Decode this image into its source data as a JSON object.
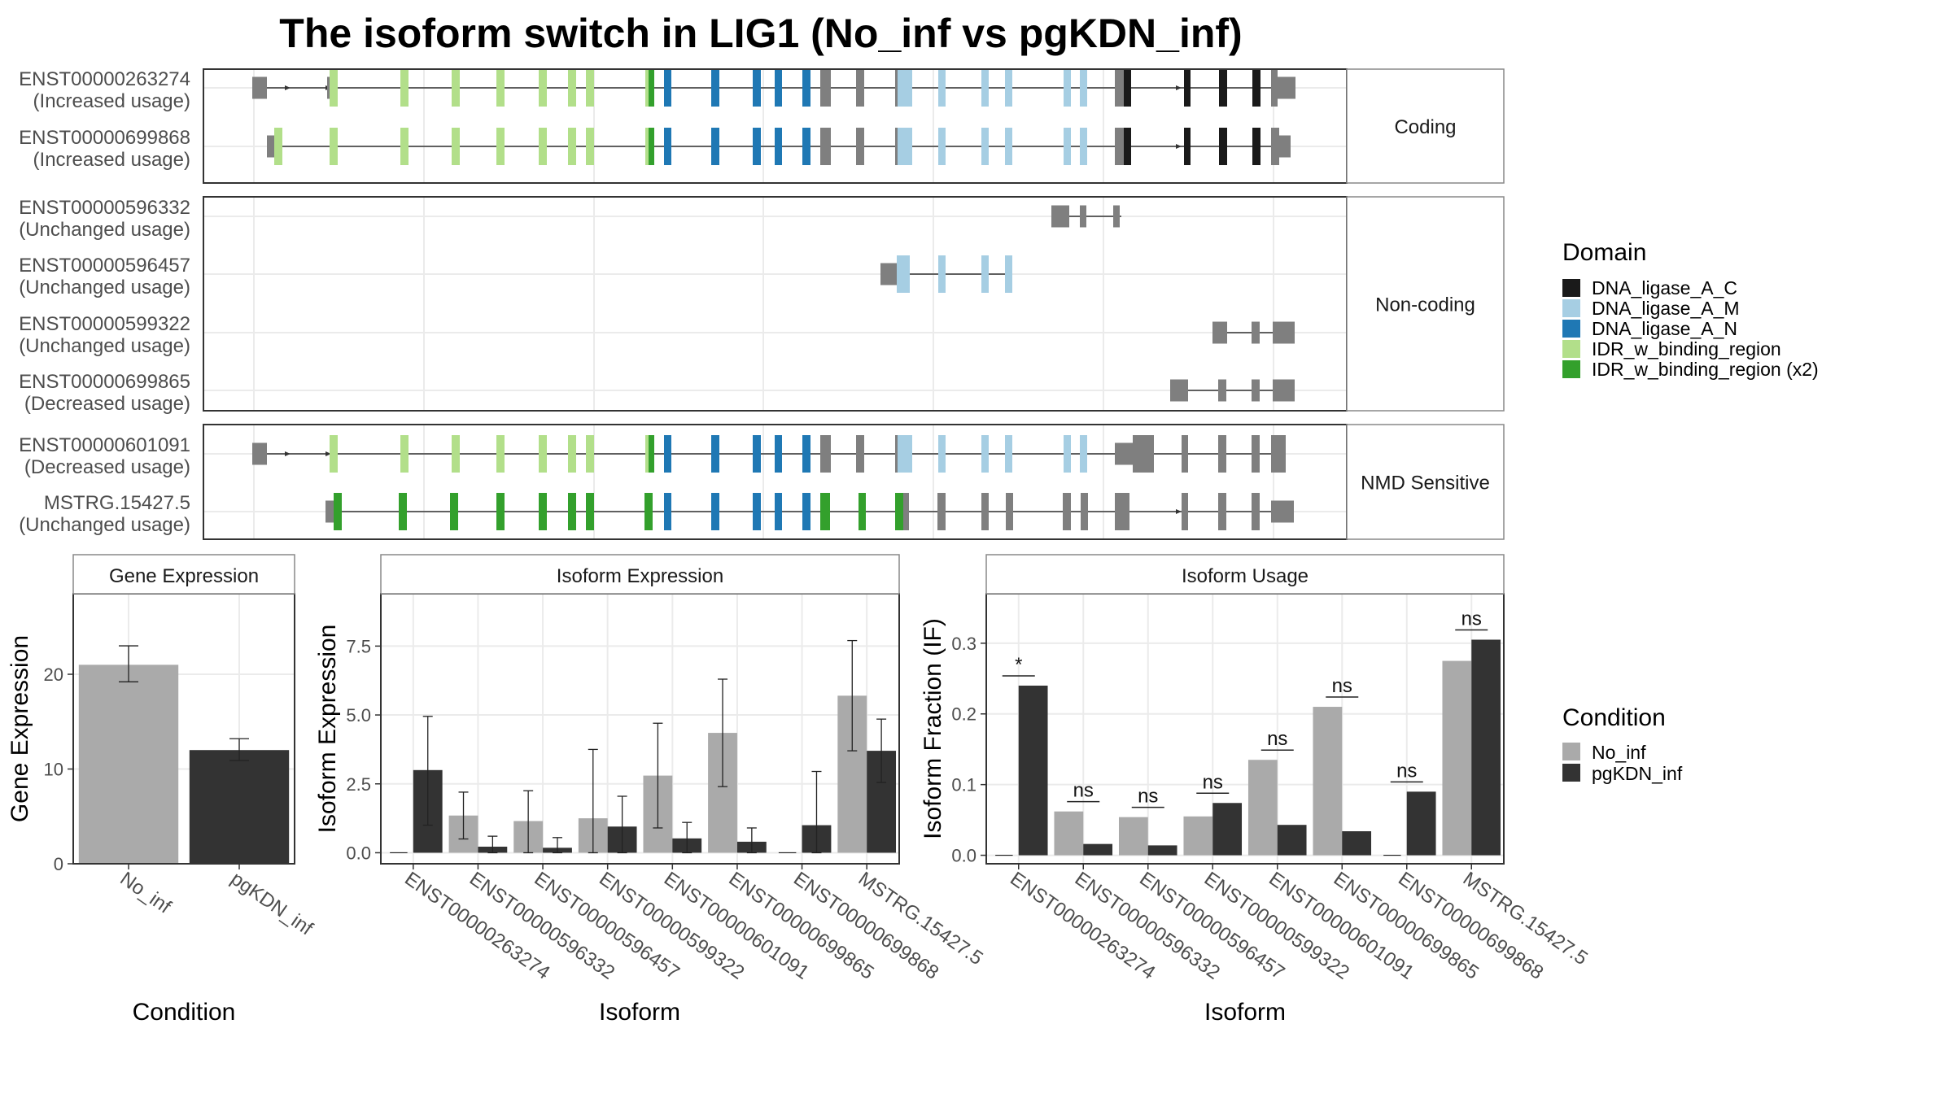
{
  "figure": {
    "title": "The isoform switch in LIG1 (No_inf vs pgKDN_inf)"
  },
  "colors": {
    "DNA_ligase_A_C": "#1a1a1a",
    "DNA_ligase_A_M": "#a6cee3",
    "DNA_ligase_A_N": "#1f78b4",
    "IDR_w_binding_region": "#b2df8a",
    "IDR_w_binding_region_x2": "#33a02c",
    "utr": "#7f7f7f",
    "no_inf": "#aaaaaa",
    "pgkdn_inf": "#333333",
    "panel_border": "#555555",
    "strip_border": "#888888",
    "grid": "#ebebeb"
  },
  "transcript_panel": {
    "groups": [
      {
        "label": "Coding",
        "transcripts": [
          {
            "id": "ENST00000263274",
            "usage": "(Increased usage)",
            "model": "full_a"
          },
          {
            "id": "ENST00000699868",
            "usage": "(Increased usage)",
            "model": "full_b"
          }
        ]
      },
      {
        "label": "Non-coding",
        "transcripts": [
          {
            "id": "ENST00000596332",
            "usage": "(Unchanged usage)",
            "model": "nc1"
          },
          {
            "id": "ENST00000596457",
            "usage": "(Unchanged usage)",
            "model": "nc2"
          },
          {
            "id": "ENST00000599322",
            "usage": "(Unchanged usage)",
            "model": "nc3"
          },
          {
            "id": "ENST00000699865",
            "usage": "(Decreased usage)",
            "model": "nc4"
          }
        ]
      },
      {
        "label": "NMD Sensitive",
        "transcripts": [
          {
            "id": "ENST00000601091",
            "usage": "(Decreased usage)",
            "model": "nmd1"
          },
          {
            "id": "MSTRG.15427.5",
            "usage": "(Unchanged usage)",
            "model": "nmd2"
          }
        ]
      }
    ],
    "legend_title": "Domain",
    "legend": [
      {
        "key": "DNA_ligase_A_C",
        "label": "DNA_ligase_A_C"
      },
      {
        "key": "DNA_ligase_A_M",
        "label": "DNA_ligase_A_M"
      },
      {
        "key": "DNA_ligase_A_N",
        "label": "DNA_ligase_A_N"
      },
      {
        "key": "IDR_w_binding_region",
        "label": "IDR_w_binding_region"
      },
      {
        "key": "IDR_w_binding_region_x2",
        "label": "IDR_w_binding_region (x2)"
      }
    ]
  },
  "condition_legend": {
    "title": "Condition",
    "items": [
      {
        "key": "no_inf",
        "label": "No_inf"
      },
      {
        "key": "pgkdn_inf",
        "label": "pgKDN_inf"
      }
    ]
  },
  "chart_data": [
    {
      "type": "bar",
      "title": "Gene Expression",
      "xlabel": "Condition",
      "ylabel": "Gene Expression",
      "categories": [
        "No_inf",
        "pgKDN_inf"
      ],
      "values": [
        21.0,
        12.0
      ],
      "error_low": [
        19.2,
        10.9
      ],
      "error_high": [
        23.0,
        13.2
      ],
      "ylim": [
        0,
        28.5
      ],
      "yticks": [
        0,
        10,
        20
      ],
      "ytick_labels": [
        "0",
        "10",
        "20"
      ],
      "grid": true
    },
    {
      "type": "bar",
      "title": "Isoform Expression",
      "xlabel": "Isoform",
      "ylabel": "Isoform Expression",
      "categories": [
        "ENST00000263274",
        "ENST00000596332",
        "ENST00000596457",
        "ENST00000599322",
        "ENST00000601091",
        "ENST00000699865",
        "ENST00000699868",
        "MSTRG.15427.5"
      ],
      "series": [
        {
          "name": "No_inf",
          "values": [
            0.0,
            1.35,
            1.15,
            1.25,
            2.8,
            4.35,
            0.0,
            5.7
          ],
          "error_low": [
            0.0,
            0.5,
            0.0,
            0.0,
            0.9,
            2.4,
            0.0,
            3.7
          ],
          "error_high": [
            0.0,
            2.2,
            2.25,
            3.75,
            4.7,
            6.3,
            0.0,
            7.7
          ]
        },
        {
          "name": "pgKDN_inf",
          "values": [
            3.0,
            0.22,
            0.18,
            0.95,
            0.52,
            0.4,
            1.0,
            3.7
          ],
          "error_low": [
            1.0,
            0.0,
            0.0,
            0.0,
            0.0,
            0.0,
            0.0,
            2.55
          ],
          "error_high": [
            4.95,
            0.6,
            0.55,
            2.05,
            1.1,
            0.9,
            2.95,
            4.85
          ]
        }
      ],
      "ylim": [
        -0.4,
        9.4
      ],
      "yticks": [
        0,
        2.5,
        5,
        7.5
      ],
      "ytick_labels": [
        "0.0",
        "2.5",
        "5.0",
        "7.5"
      ],
      "grid": true
    },
    {
      "type": "bar",
      "title": "Isoform Usage",
      "xlabel": "Isoform",
      "ylabel": "Isoform Fraction (IF)",
      "categories": [
        "ENST00000263274",
        "ENST00000596332",
        "ENST00000596457",
        "ENST00000599322",
        "ENST00000601091",
        "ENST00000699865",
        "ENST00000699868",
        "MSTRG.15427.5"
      ],
      "series": [
        {
          "name": "No_inf",
          "values": [
            0.0,
            0.062,
            0.054,
            0.055,
            0.135,
            0.21,
            0.0,
            0.275
          ]
        },
        {
          "name": "pgKDN_inf",
          "values": [
            0.24,
            0.016,
            0.014,
            0.074,
            0.043,
            0.034,
            0.09,
            0.305
          ]
        }
      ],
      "significance": [
        "*",
        "ns",
        "ns",
        "ns",
        "ns",
        "ns",
        "ns",
        "ns"
      ],
      "ylim": [
        -0.012,
        0.37
      ],
      "yticks": [
        0,
        0.1,
        0.2,
        0.3
      ],
      "ytick_labels": [
        "0.0",
        "0.1",
        "0.2",
        "0.3"
      ],
      "grid": true
    }
  ]
}
